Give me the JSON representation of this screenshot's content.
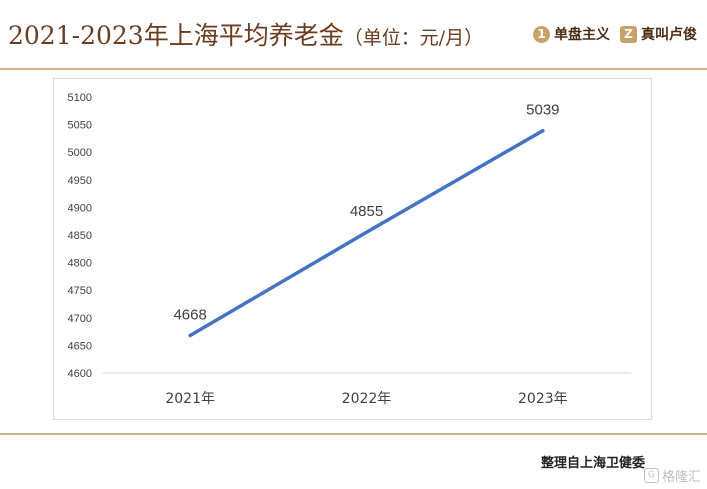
{
  "header": {
    "title": "2021-2023年上海平均养老金",
    "unit": "（单位：元/月）",
    "logo1_text": "单盘主义",
    "logo1_mark": "1",
    "logo2_text": "真叫卢俊",
    "logo2_mark": "Z"
  },
  "footer": {
    "source": "整理自上海卫健委",
    "watermark": "格隆汇",
    "watermark_mark": "G"
  },
  "colors": {
    "line": "#4472c4",
    "title": "#6b3d1e",
    "rule": "#d6b48a"
  },
  "chart_data": {
    "type": "line",
    "categories": [
      "2021年",
      "2022年",
      "2023年"
    ],
    "values": [
      4668,
      4855,
      5039
    ],
    "data_labels": [
      "4668",
      "4855",
      "5039"
    ],
    "title": "2021-2023年上海平均养老金（单位：元/月）",
    "xlabel": "",
    "ylabel": "",
    "ylim": [
      4600,
      5100
    ],
    "yticks": [
      "4600",
      "4650",
      "4700",
      "4750",
      "4800",
      "4850",
      "4900",
      "4950",
      "5000",
      "5050",
      "5100"
    ],
    "grid": false,
    "legend": "none"
  }
}
